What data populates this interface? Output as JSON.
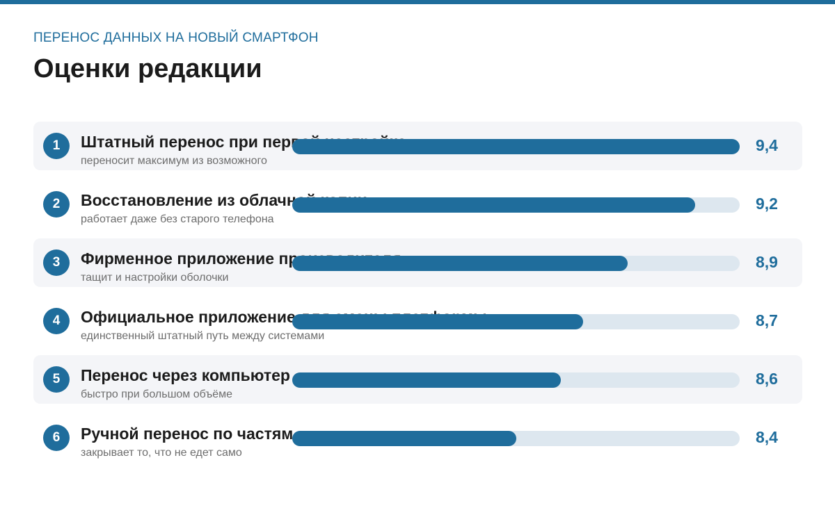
{
  "header": {
    "kicker": "ПЕРЕНОС ДАННЫХ НА НОВЫЙ СМАРТФОН",
    "title": "Оценки редакции"
  },
  "colors": {
    "accent": "#1f6d9c",
    "track": "#dde7ef",
    "row_shade": "#f4f5f8"
  },
  "chart_data": {
    "type": "bar",
    "orientation": "horizontal",
    "title": "Оценки редакции",
    "subtitle": "ПЕРЕНОС ДАННЫХ НА НОВЫЙ СМАРТФОН",
    "ranks": [
      "1",
      "2",
      "3",
      "4",
      "5",
      "6"
    ],
    "categories": [
      "Штатный перенос при первой настройке",
      "Восстановление из облачной копии",
      "Фирменное приложение производителя",
      "Официальное приложение для смены платформы",
      "Перенос через компьютер",
      "Ручной перенос по частям"
    ],
    "descriptions": [
      "переносит максимум из возможного",
      "работает даже без старого телефона",
      "тащит и настройки оболочки",
      "единственный штатный путь между системами",
      "быстро при большом объёме",
      "закрывает то, что не едет само"
    ],
    "values": [
      9.4,
      9.2,
      8.9,
      8.7,
      8.6,
      8.4
    ],
    "value_labels": [
      "9,4",
      "9,2",
      "8,9",
      "8,7",
      "8,6",
      "8,4"
    ],
    "xlim": [
      7.4,
      9.4
    ]
  }
}
